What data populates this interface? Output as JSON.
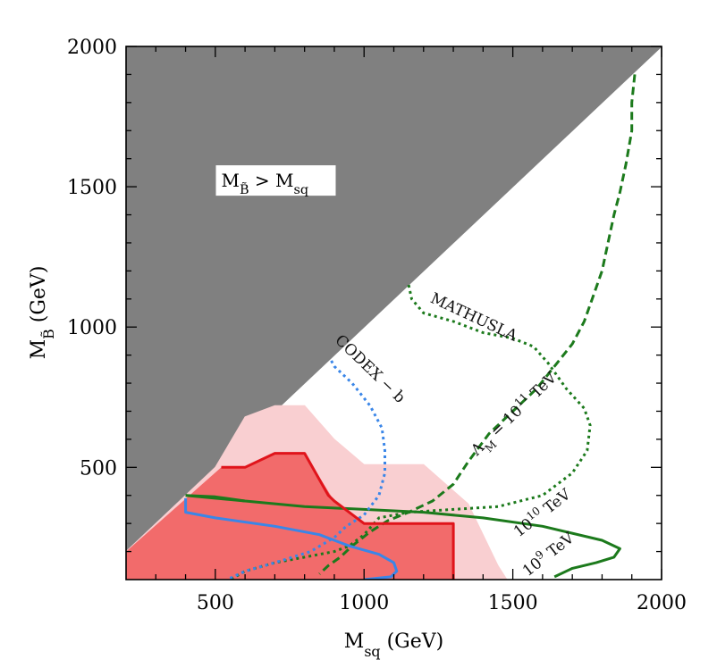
{
  "chart_data": {
    "type": "area",
    "title": "",
    "xlabel": "M_sq (GeV)",
    "ylabel": "M_B̃ (GeV)",
    "xlim": [
      200,
      2000
    ],
    "ylim": [
      100,
      2000
    ],
    "xticks": [
      500,
      1000,
      1500,
      2000
    ],
    "yticks": [
      500,
      1000,
      1500,
      2000
    ],
    "x_tick_labels": [
      "500",
      "1000",
      "1500",
      "2000"
    ],
    "y_tick_labels": [
      "500",
      "1000",
      "1500",
      "2000"
    ],
    "grid": false,
    "colors": {
      "excluded": "#808080",
      "light_red": "#f9cfd1",
      "red_fill": "#f26b6b",
      "red_line": "#e0141b",
      "green": "#1c7a1c",
      "blue": "#3a86e8"
    },
    "regions": [
      {
        "name": "M_B̃ > M_sq",
        "label": "M_B̃ > M_sq",
        "style": "gray-fill",
        "points": [
          [
            200,
            200
          ],
          [
            2000,
            2000
          ],
          [
            200,
            2000
          ]
        ]
      },
      {
        "name": "",
        "style": "light-red-fill",
        "points": [
          [
            500,
            500
          ],
          [
            600,
            680
          ],
          [
            700,
            720
          ],
          [
            800,
            720
          ],
          [
            900,
            600
          ],
          [
            1000,
            510
          ],
          [
            1200,
            510
          ],
          [
            1350,
            370
          ],
          [
            1450,
            150
          ],
          [
            1480,
            100
          ],
          [
            200,
            100
          ],
          [
            200,
            200
          ]
        ]
      },
      {
        "name": "",
        "style": "red-fill",
        "points": [
          [
            200,
            100
          ],
          [
            200,
            200
          ],
          [
            520,
            500
          ],
          [
            600,
            500
          ],
          [
            700,
            550
          ],
          [
            800,
            550
          ],
          [
            900,
            380
          ],
          [
            1000,
            300
          ],
          [
            1300,
            300
          ],
          [
            1300,
            100
          ]
        ]
      }
    ],
    "series": [
      {
        "name": "",
        "label": "MATHUSLA",
        "style": "green-dotted",
        "points": [
          [
            1150,
            1150
          ],
          [
            1160,
            1100
          ],
          [
            1200,
            1050
          ],
          [
            1300,
            1020
          ],
          [
            1400,
            980
          ],
          [
            1500,
            960
          ],
          [
            1570,
            930
          ],
          [
            1620,
            870
          ],
          [
            1680,
            780
          ],
          [
            1740,
            710
          ],
          [
            1760,
            650
          ],
          [
            1750,
            560
          ],
          [
            1700,
            480
          ],
          [
            1600,
            400
          ],
          [
            1450,
            360
          ],
          [
            1300,
            350
          ],
          [
            1150,
            340
          ],
          [
            1050,
            320
          ],
          [
            1000,
            260
          ],
          [
            950,
            220
          ],
          [
            900,
            200
          ],
          [
            800,
            180
          ],
          [
            700,
            160
          ],
          [
            600,
            130
          ],
          [
            550,
            100
          ]
        ]
      },
      {
        "name": "",
        "label": "Λ_M = 10^11 TeV",
        "style": "green-dashed",
        "points": [
          [
            1910,
            1900
          ],
          [
            1900,
            1800
          ],
          [
            1900,
            1700
          ],
          [
            1880,
            1580
          ],
          [
            1860,
            1480
          ],
          [
            1840,
            1400
          ],
          [
            1820,
            1300
          ],
          [
            1800,
            1200
          ],
          [
            1770,
            1110
          ],
          [
            1740,
            1020
          ],
          [
            1700,
            940
          ],
          [
            1640,
            860
          ],
          [
            1580,
            780
          ],
          [
            1500,
            700
          ],
          [
            1420,
            620
          ],
          [
            1350,
            520
          ],
          [
            1300,
            440
          ],
          [
            1230,
            380
          ],
          [
            1150,
            340
          ],
          [
            1080,
            310
          ],
          [
            1020,
            270
          ],
          [
            960,
            220
          ],
          [
            920,
            180
          ],
          [
            880,
            150
          ],
          [
            850,
            120
          ]
        ]
      },
      {
        "name": "",
        "label": "10^9 TeV",
        "style": "green-solid",
        "points": [
          [
            400,
            400
          ],
          [
            500,
            395
          ],
          [
            600,
            380
          ],
          [
            800,
            360
          ],
          [
            1000,
            350
          ],
          [
            1200,
            340
          ],
          [
            1400,
            320
          ],
          [
            1600,
            290
          ],
          [
            1800,
            240
          ],
          [
            1860,
            210
          ],
          [
            1840,
            180
          ],
          [
            1780,
            160
          ],
          [
            1700,
            140
          ],
          [
            1640,
            110
          ]
        ]
      },
      {
        "name": "",
        "label": "10^10 TeV",
        "style": "green-solid",
        "points": [
          [
            400,
            400
          ],
          [
            600,
            380
          ]
        ]
      },
      {
        "name": "",
        "label": "CODEX − b",
        "style": "blue-dotted",
        "points": [
          [
            890,
            880
          ],
          [
            900,
            860
          ],
          [
            960,
            800
          ],
          [
            1020,
            720
          ],
          [
            1060,
            640
          ],
          [
            1070,
            560
          ],
          [
            1070,
            480
          ],
          [
            1050,
            400
          ],
          [
            1000,
            330
          ],
          [
            940,
            290
          ],
          [
            900,
            250
          ],
          [
            820,
            200
          ],
          [
            700,
            160
          ],
          [
            600,
            130
          ],
          [
            540,
            100
          ]
        ]
      },
      {
        "name": "",
        "style": "blue-solid",
        "points": [
          [
            400,
            390
          ],
          [
            400,
            340
          ],
          [
            500,
            320
          ],
          [
            700,
            290
          ],
          [
            850,
            260
          ],
          [
            950,
            220
          ],
          [
            1050,
            190
          ],
          [
            1100,
            160
          ],
          [
            1110,
            130
          ],
          [
            1090,
            110
          ],
          [
            1000,
            100
          ]
        ]
      },
      {
        "name": "",
        "style": "red-solid",
        "points": [
          [
            520,
            500
          ],
          [
            600,
            500
          ],
          [
            700,
            550
          ],
          [
            800,
            550
          ],
          [
            880,
            400
          ],
          [
            900,
            380
          ],
          [
            1000,
            300
          ],
          [
            1300,
            300
          ],
          [
            1300,
            100
          ]
        ]
      }
    ],
    "annotations": [
      {
        "text": "M_B̃ > M_sq",
        "at": [
          520,
          1500
        ]
      },
      {
        "text": "MATHUSLA",
        "at": [
          1220,
          1090
        ]
      },
      {
        "text": "Λ_M = 10^11 TeV",
        "at": [
          1380,
          540
        ]
      },
      {
        "text": "CODEX − b",
        "at": [
          900,
          950
        ]
      },
      {
        "text": "10^10 TeV",
        "at": [
          1520,
          250
        ]
      },
      {
        "text": "10^9 TeV",
        "at": [
          1550,
          110
        ]
      }
    ]
  }
}
